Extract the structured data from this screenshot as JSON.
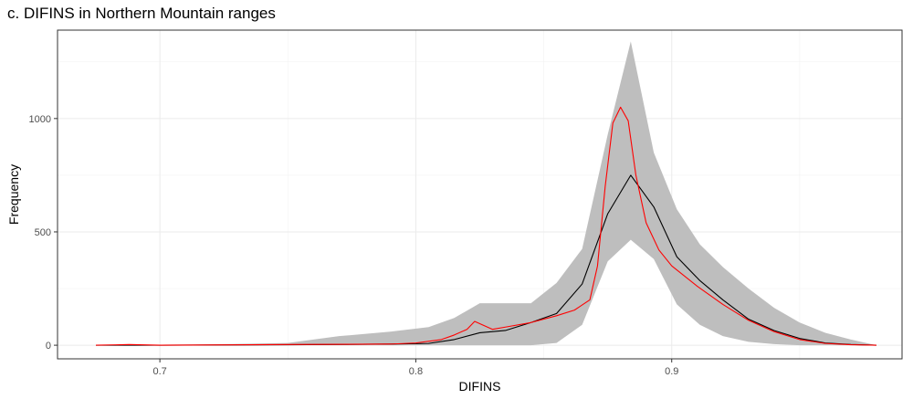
{
  "chart_data": {
    "type": "line",
    "title": "c. DIFINS in Northern Mountain ranges",
    "xlabel": "DIFINS",
    "ylabel": "Frequency",
    "xlim": [
      0.66,
      0.99
    ],
    "ylim": [
      -60,
      1390
    ],
    "x_ticks": [
      0.7,
      0.8,
      0.9
    ],
    "x_tick_labels": [
      "0.7",
      "0.8",
      "0.9"
    ],
    "y_ticks": [
      0,
      500,
      1000
    ],
    "y_tick_labels": [
      "0",
      "500",
      "1000"
    ],
    "grid": true,
    "legend": "none",
    "series": [
      {
        "kind": "ribbon",
        "color": "#bebebe",
        "x": [
          0.675,
          0.7,
          0.75,
          0.77,
          0.79,
          0.805,
          0.815,
          0.825,
          0.835,
          0.845,
          0.855,
          0.865,
          0.875,
          0.884,
          0.893,
          0.902,
          0.911,
          0.92,
          0.93,
          0.94,
          0.95,
          0.96,
          0.97,
          0.98
        ],
        "upper": [
          0,
          0,
          10,
          40,
          60,
          80,
          120,
          185,
          185,
          185,
          275,
          425,
          930,
          1340,
          850,
          600,
          445,
          345,
          250,
          165,
          100,
          55,
          25,
          0
        ],
        "lower": [
          0,
          0,
          0,
          0,
          0,
          0,
          0,
          0,
          0,
          0,
          10,
          90,
          370,
          465,
          380,
          180,
          90,
          40,
          15,
          5,
          0,
          0,
          0,
          0
        ]
      },
      {
        "kind": "line",
        "color": "#000000",
        "x": [
          0.675,
          0.7,
          0.75,
          0.79,
          0.805,
          0.815,
          0.825,
          0.835,
          0.845,
          0.855,
          0.865,
          0.875,
          0.884,
          0.893,
          0.902,
          0.911,
          0.92,
          0.93,
          0.94,
          0.95,
          0.96,
          0.97,
          0.98
        ],
        "y": [
          0,
          0,
          2,
          5,
          8,
          25,
          55,
          65,
          100,
          140,
          270,
          580,
          750,
          610,
          390,
          285,
          200,
          115,
          65,
          30,
          10,
          3,
          0
        ]
      },
      {
        "kind": "line",
        "color": "#ff0000",
        "x": [
          0.675,
          0.688,
          0.7,
          0.75,
          0.79,
          0.8,
          0.81,
          0.815,
          0.82,
          0.823,
          0.826,
          0.83,
          0.835,
          0.845,
          0.855,
          0.862,
          0.868,
          0.871,
          0.874,
          0.877,
          0.88,
          0.883,
          0.886,
          0.89,
          0.895,
          0.9,
          0.91,
          0.92,
          0.93,
          0.94,
          0.95,
          0.96,
          0.97,
          0.98
        ],
        "y": [
          0,
          3,
          0,
          3,
          5,
          10,
          25,
          45,
          70,
          105,
          90,
          70,
          80,
          100,
          130,
          155,
          200,
          350,
          700,
          980,
          1050,
          990,
          750,
          540,
          420,
          350,
          260,
          180,
          110,
          60,
          25,
          8,
          2,
          0
        ]
      }
    ]
  }
}
